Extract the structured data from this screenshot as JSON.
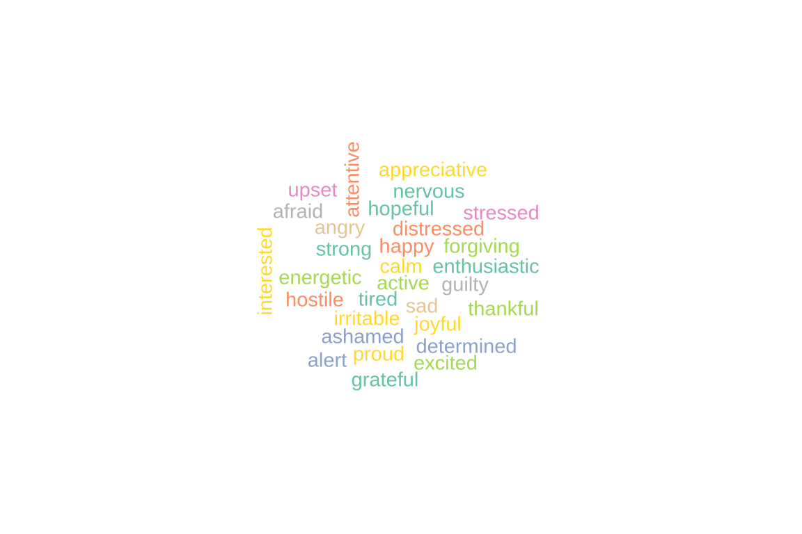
{
  "palette": {
    "teal": "#66c2a5",
    "orange": "#fc8d62",
    "blue": "#8da0cb",
    "pink": "#e78ac3",
    "green": "#a6d854",
    "yellow": "#ffd92f",
    "tan": "#e5c494",
    "gray": "#b3b3b3"
  },
  "words": [
    {
      "text": "attentive",
      "color": "orange",
      "rotated": true
    },
    {
      "text": "appreciative",
      "color": "yellow"
    },
    {
      "text": "upset",
      "color": "pink"
    },
    {
      "text": "nervous",
      "color": "teal"
    },
    {
      "text": "afraid",
      "color": "gray"
    },
    {
      "text": "hopeful",
      "color": "teal"
    },
    {
      "text": "stressed",
      "color": "pink"
    },
    {
      "text": "angry",
      "color": "tan"
    },
    {
      "text": "distressed",
      "color": "orange"
    },
    {
      "text": "interested",
      "color": "yellow",
      "rotated": true
    },
    {
      "text": "strong",
      "color": "teal"
    },
    {
      "text": "happy",
      "color": "orange"
    },
    {
      "text": "forgiving",
      "color": "green"
    },
    {
      "text": "calm",
      "color": "yellow"
    },
    {
      "text": "enthusiastic",
      "color": "teal"
    },
    {
      "text": "energetic",
      "color": "green"
    },
    {
      "text": "active",
      "color": "green"
    },
    {
      "text": "guilty",
      "color": "gray"
    },
    {
      "text": "hostile",
      "color": "orange"
    },
    {
      "text": "tired",
      "color": "teal"
    },
    {
      "text": "sad",
      "color": "tan"
    },
    {
      "text": "thankful",
      "color": "green"
    },
    {
      "text": "irritable",
      "color": "yellow"
    },
    {
      "text": "joyful",
      "color": "yellow"
    },
    {
      "text": "ashamed",
      "color": "blue"
    },
    {
      "text": "determined",
      "color": "blue"
    },
    {
      "text": "alert",
      "color": "blue"
    },
    {
      "text": "proud",
      "color": "yellow"
    },
    {
      "text": "excited",
      "color": "green"
    },
    {
      "text": "grateful",
      "color": "teal"
    }
  ]
}
